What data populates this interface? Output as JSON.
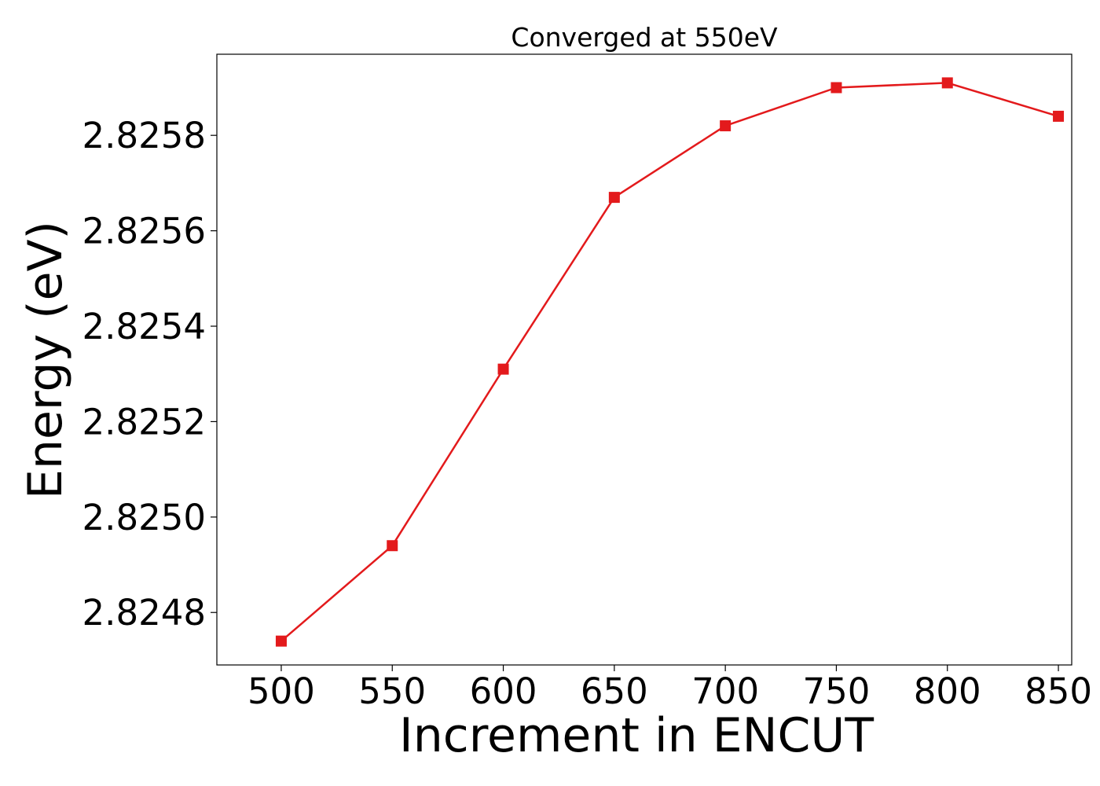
{
  "chart_data": {
    "type": "line",
    "title": "Converged at 550eV",
    "xlabel": "Increment in ENCUT",
    "ylabel": "Energy (eV)",
    "x": [
      500,
      550,
      600,
      650,
      700,
      750,
      800,
      850
    ],
    "series": [
      {
        "values": [
          2.82474,
          2.82494,
          2.82531,
          2.82567,
          2.82582,
          2.8259,
          2.82591,
          2.82584
        ],
        "color": "#e31a1c",
        "marker": "square"
      }
    ],
    "xlim": [
      471,
      856
    ],
    "ylim": [
      2.82469,
      2.82597
    ],
    "xticks": [
      500,
      550,
      600,
      650,
      700,
      750,
      800,
      850
    ],
    "yticks": [
      2.8248,
      2.825,
      2.8252,
      2.8254,
      2.8256,
      2.8258
    ],
    "ytick_labels": [
      "2.8248",
      "2.8250",
      "2.8252",
      "2.8254",
      "2.8256",
      "2.8258"
    ],
    "grid": false,
    "legend": "none"
  }
}
